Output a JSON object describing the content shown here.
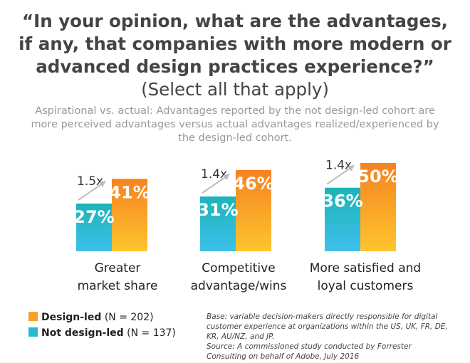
{
  "title": {
    "question": "“In your opinion, what are the advantages, if any, that companies with more modern or advanced design practices experience?”",
    "note": "(Select all that apply)"
  },
  "subtitle": "Aspirational vs. actual: Advantages reported by the not design-led cohort are more perceived advantages versus actual advantages realized/experienced by the design-led cohort.",
  "chart_data": {
    "type": "bar",
    "categories": [
      "Greater market share",
      "Competitive advantage/wins",
      "More satisfied and loyal customers"
    ],
    "series": [
      {
        "name": "Not design-led",
        "values": [
          27,
          31,
          36
        ],
        "labels": [
          "27%",
          "31%",
          "36%"
        ]
      },
      {
        "name": "Design-led",
        "values": [
          41,
          46,
          50
        ],
        "labels": [
          "41%",
          "46%",
          "50%"
        ]
      }
    ],
    "multipliers": [
      "1.5x",
      "1.4x",
      "1.4x"
    ],
    "ylim": [
      0,
      50
    ],
    "colors": {
      "design_led_top": "#f58220",
      "design_led_bottom": "#fdc52f",
      "not_design_led_top": "#1bb4b9",
      "not_design_led_bottom": "#3fc0ea",
      "arrow": "#bbbbbb"
    }
  },
  "category_lines": [
    [
      "Greater",
      "market share"
    ],
    [
      "Competitive",
      "advantage/wins"
    ],
    [
      "More satisfied and",
      "loyal customers"
    ]
  ],
  "legend": [
    {
      "name": "Design-led",
      "n": "(N = 202)",
      "color": "#f9a029"
    },
    {
      "name": "Not design-led",
      "n": "(N = 137)",
      "color": "#28b8d0"
    }
  ],
  "footnote": {
    "base": "Base: variable decision-makers directly responsible for digital customer experience at organizations within the US, UK, FR, DE, KR, AU/NZ, and JP.",
    "source": "Source: A commissioned study conducted by Forrester Consulting on behalf of Adobe, July 2016"
  }
}
